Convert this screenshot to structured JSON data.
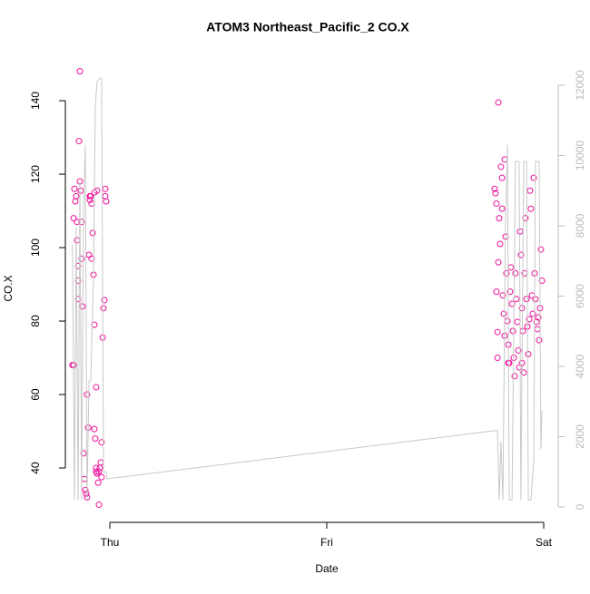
{
  "chart_data": {
    "type": "scatter",
    "title": "ATOM3 Northeast_Pacific_2 CO.X",
    "x_label": "Date",
    "y_label": "CO.X",
    "xlim": [
      -0.205,
      2.067
    ],
    "ylim": [
      25.2,
      152.6
    ],
    "y2lim": [
      -439,
      12877
    ],
    "xticks": [
      {
        "value": 0,
        "label": "Thu"
      },
      {
        "value": 1,
        "label": "Fri"
      },
      {
        "value": 2,
        "label": "Sat"
      }
    ],
    "yticks": [
      40,
      60,
      80,
      100,
      120,
      140
    ],
    "y2ticks": [
      0,
      2000,
      4000,
      6000,
      8000,
      10000,
      12000
    ],
    "series": [
      {
        "color": "#f0109a",
        "x": [
          -0.172,
          -0.167,
          -0.167,
          -0.163,
          -0.159,
          -0.155,
          -0.151,
          -0.151,
          -0.146,
          -0.146,
          -0.146,
          -0.142,
          -0.138,
          -0.138,
          -0.134,
          -0.13,
          -0.13,
          -0.126,
          -0.121,
          -0.117,
          -0.113,
          -0.109,
          -0.105,
          -0.105,
          -0.1,
          -0.096,
          -0.092,
          -0.088,
          -0.084,
          -0.079,
          -0.075,
          -0.071,
          -0.071,
          -0.067,
          -0.063,
          -0.063,
          -0.059,
          -0.054,
          -0.05,
          -0.046,
          -0.042,
          -0.038,
          -0.033,
          -0.029,
          -0.025,
          -0.021,
          -0.021,
          -0.017,
          -0.084,
          -0.092,
          -0.071,
          -0.059,
          -0.05,
          -0.038,
          -0.063,
          1.774,
          1.778,
          1.782,
          1.782,
          1.787,
          1.787,
          1.791,
          1.795,
          1.799,
          1.803,
          1.808,
          1.808,
          1.812,
          1.816,
          1.82,
          1.824,
          1.828,
          1.833,
          1.837,
          1.841,
          1.845,
          1.849,
          1.854,
          1.858,
          1.862,
          1.866,
          1.87,
          1.874,
          1.879,
          1.883,
          1.887,
          1.891,
          1.895,
          1.9,
          1.904,
          1.908,
          1.912,
          1.916,
          1.921,
          1.925,
          1.929,
          1.933,
          1.937,
          1.941,
          1.946,
          1.95,
          1.954,
          1.958,
          1.962,
          1.967,
          1.971,
          1.975,
          1.979,
          1.983,
          1.987,
          1.992,
          1.791,
          1.82,
          1.837,
          1.9
        ],
        "values": [
          68,
          68,
          108,
          116,
          112.6,
          114,
          107,
          102,
          95,
          91,
          86,
          129,
          148,
          118,
          115.5,
          107,
          97,
          84,
          44,
          37,
          34,
          33,
          32,
          60,
          51,
          98,
          113,
          114,
          112,
          104,
          92.6,
          79,
          50.6,
          48,
          62,
          40,
          38.5,
          36,
          30,
          40,
          41.5,
          47,
          75.5,
          83.5,
          85.7,
          114,
          116,
          112.6,
          97,
          114,
          115,
          115.5,
          39,
          37.5,
          39,
          116,
          114.8,
          112,
          88,
          77,
          70,
          96,
          108,
          101,
          122,
          119,
          110.6,
          87,
          82,
          76,
          103,
          93,
          80,
          73.6,
          68.6,
          88,
          94.6,
          84.7,
          77.3,
          70,
          65,
          93,
          86,
          79.8,
          72,
          67.4,
          104.4,
          98,
          83.5,
          77.3,
          66,
          93,
          108,
          86,
          78.5,
          71,
          80.5,
          115.5,
          110.6,
          87,
          82,
          119,
          93,
          86,
          79.8,
          77.8,
          81,
          74.8,
          83.5,
          99.5,
          91,
          139.5,
          124,
          68.6,
          68.6
        ]
      },
      {
        "color": "#c8c8c8",
        "axis": "y2",
        "x": [
          -0.172,
          -0.163,
          -0.155,
          -0.146,
          -0.138,
          -0.13,
          -0.121,
          -0.113,
          -0.105,
          -0.096,
          -0.088,
          -0.075,
          -0.067,
          -0.059,
          -0.046,
          -0.038,
          -0.029,
          -0.017,
          -0.013,
          1.774,
          1.787,
          1.795,
          1.803,
          1.812,
          1.824,
          1.833,
          1.841,
          1.854,
          1.87,
          1.887,
          1.895,
          1.908,
          1.921,
          1.929,
          1.941,
          1.954,
          1.962,
          1.971,
          1.979,
          1.987,
          1.992
        ],
        "values": [
          7460,
          200,
          7970,
          200,
          9260,
          200,
          8490,
          10300,
          200,
          3590,
          3590,
          6680,
          11380,
          12100,
          12200,
          12200,
          1000,
          1000,
          800,
          2170,
          2170,
          200,
          1860,
          200,
          8230,
          10300,
          200,
          200,
          9830,
          9830,
          200,
          9830,
          9830,
          200,
          200,
          1260,
          9830,
          9830,
          9830,
          1650,
          2740
        ]
      }
    ]
  }
}
